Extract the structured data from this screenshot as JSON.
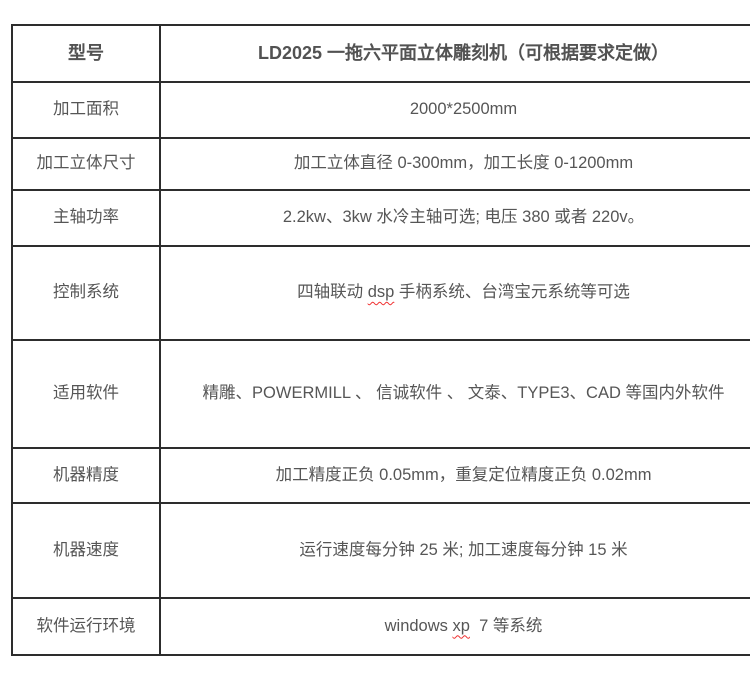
{
  "table": {
    "header": {
      "label": "型号",
      "title": "LD2025 一拖六平面立体雕刻机（可根据要求定做）"
    },
    "rows": [
      {
        "label": "加工面积",
        "value": "2000*2500mm"
      },
      {
        "label": "加工立体尺寸",
        "value": "加工立体直径 0-300mm，加工长度 0-1200mm"
      },
      {
        "label": "主轴功率",
        "value": "2.2kw、3kw 水冷主轴可选; 电压 380 或者 220v。"
      },
      {
        "label": "控制系统",
        "value_pre": "四轴联动 ",
        "value_spellcheck": "dsp",
        "value_post": " 手柄系统、台湾宝元系统等可选"
      },
      {
        "label": "适用软件",
        "value": "精雕、POWERMILL 、 信诚软件 、 文泰、TYPE3、CAD 等国内外软件"
      },
      {
        "label": "机器精度",
        "value": "加工精度正负 0.05mm，重复定位精度正负 0.02mm"
      },
      {
        "label": "机器速度",
        "value": "运行速度每分钟 25 米; 加工速度每分钟 15 米"
      },
      {
        "label": "软件运行环境",
        "value_pre": "windows ",
        "value_spellcheck": "xp",
        "value_post": "  7 等系统"
      }
    ]
  },
  "colors": {
    "text": "#565656",
    "border": "#2d2d2d",
    "spellcheck_underline": "#f03030",
    "background": "#ffffff"
  }
}
